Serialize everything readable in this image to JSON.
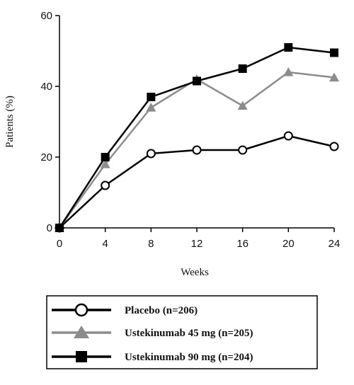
{
  "chart_data": {
    "type": "line",
    "xlabel": "Weeks",
    "ylabel": "Patients (%)",
    "x": [
      0,
      4,
      8,
      12,
      16,
      20,
      24
    ],
    "xlim": [
      0,
      24
    ],
    "ylim": [
      0,
      60
    ],
    "xticks": [
      "0",
      "4",
      "8",
      "12",
      "16",
      "20",
      "24"
    ],
    "yticks": [
      "0",
      "20",
      "40",
      "60"
    ],
    "grid": false,
    "legend_position": "bottom",
    "series": [
      {
        "name": "Placebo (n=206)",
        "values": [
          0,
          12,
          21,
          22,
          22,
          26,
          23
        ],
        "color": "#000000",
        "marker": "open-circle"
      },
      {
        "name": "Ustekinumab 45 mg (n=205)",
        "values": [
          0,
          18,
          34,
          42,
          34.5,
          44,
          42.5
        ],
        "color": "#8c8c8c",
        "marker": "triangle"
      },
      {
        "name": "Ustekinumab 90 mg (n=204)",
        "values": [
          0,
          20,
          37,
          41.5,
          45,
          51,
          49.5
        ],
        "color": "#000000",
        "marker": "square"
      }
    ]
  }
}
